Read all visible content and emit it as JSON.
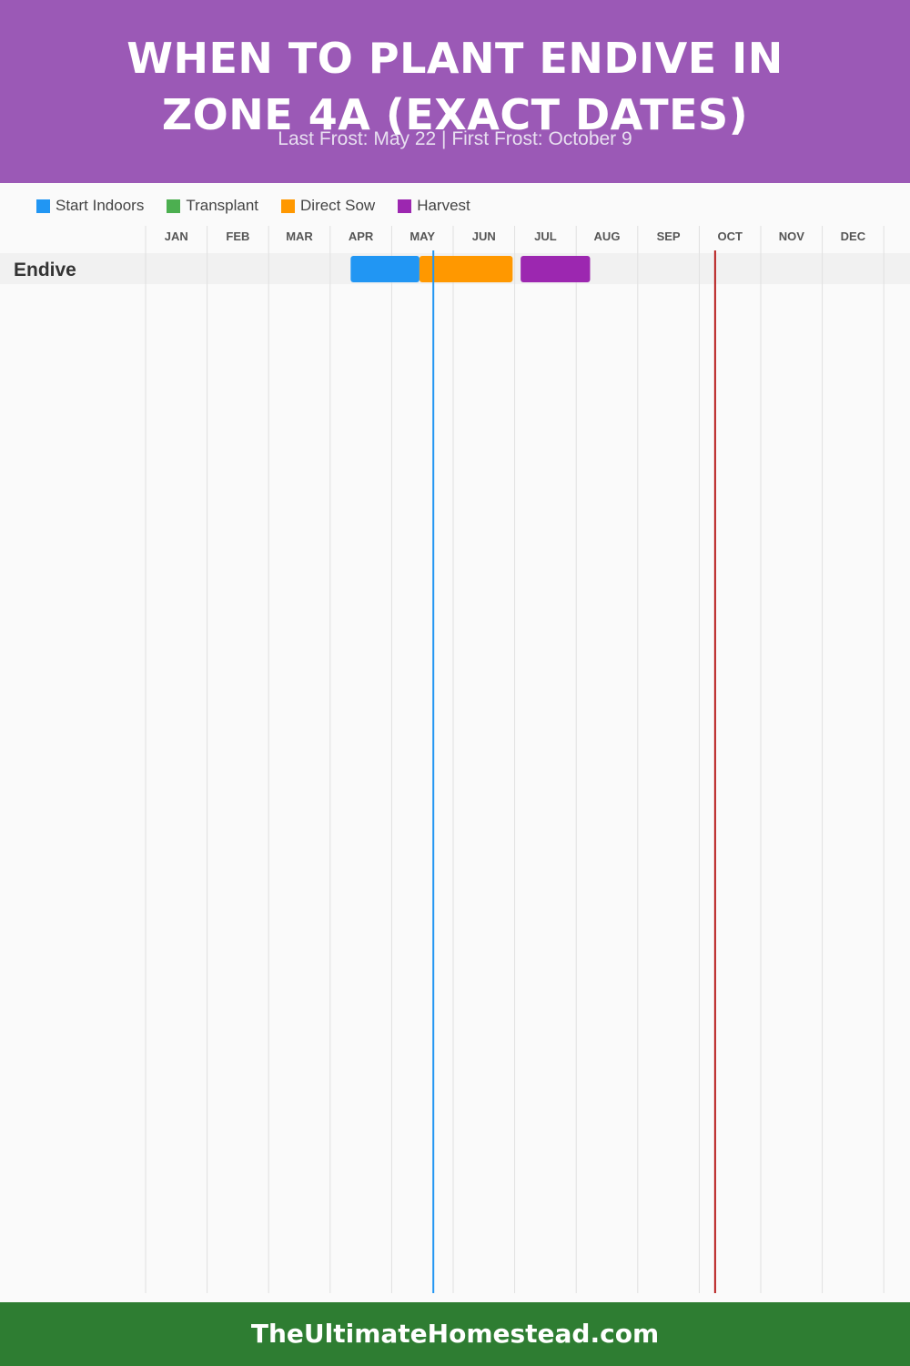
{
  "header": {
    "title": "When to Plant Endive in Zone 4a (Exact Dates)",
    "subtitle": "Last Frost: May 22 | First Frost: October 9"
  },
  "legend": [
    {
      "label": "Start Indoors",
      "color": "#2196f3"
    },
    {
      "label": "Transplant",
      "color": "#4caf50"
    },
    {
      "label": "Direct Sow",
      "color": "#ff9800"
    },
    {
      "label": "Harvest",
      "color": "#9c27b0"
    }
  ],
  "footer": {
    "site": "TheUltimateHomestead.com"
  },
  "chart_data": {
    "type": "gantt",
    "months": [
      "JAN",
      "FEB",
      "MAR",
      "APR",
      "MAY",
      "JUN",
      "JUL",
      "AUG",
      "SEP",
      "OCT",
      "NOV",
      "DEC"
    ],
    "rows": [
      {
        "crop": "Endive",
        "tasks": [
          {
            "phase": "Start Indoors",
            "start": "Apr 11",
            "end": "May 15",
            "color": "#2196f3"
          },
          {
            "phase": "Direct Sow",
            "start": "May 15",
            "end": "Jun 30",
            "color": "#ff9800"
          },
          {
            "phase": "Harvest",
            "start": "Jul 4",
            "end": "Aug 8",
            "color": "#9c27b0"
          }
        ]
      }
    ],
    "markers": [
      {
        "name": "Last Frost",
        "date": "May 22",
        "color": "#2196f3"
      },
      {
        "name": "First Frost",
        "date": "October 9",
        "color": "#b71c1c"
      }
    ]
  }
}
